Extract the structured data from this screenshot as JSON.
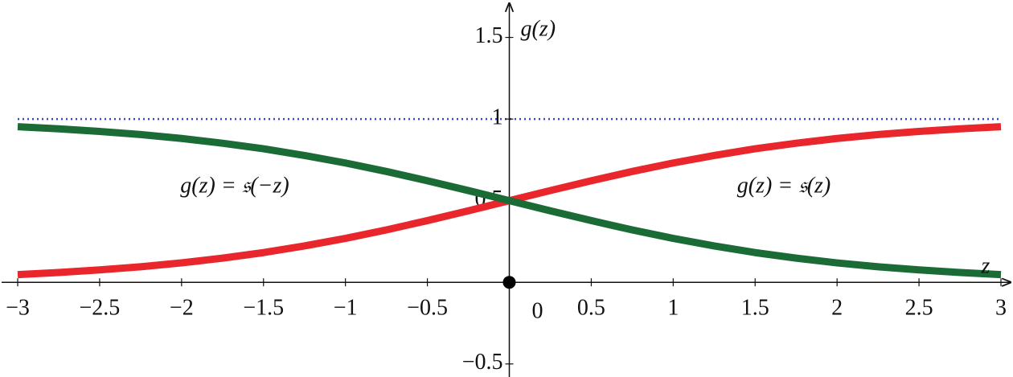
{
  "chart_data": {
    "type": "line",
    "x_label": "z",
    "y_label": "g(z)",
    "x": [
      -3,
      -2.75,
      -2.5,
      -2.25,
      -2,
      -1.75,
      -1.5,
      -1.25,
      -1,
      -0.75,
      -0.5,
      -0.25,
      0,
      0.25,
      0.5,
      0.75,
      1,
      1.25,
      1.5,
      1.75,
      2,
      2.25,
      2.5,
      2.75,
      3
    ],
    "series": [
      {
        "name": "g(z) = 𝔰(z)",
        "color": "#e8262b",
        "values": [
          0.047,
          0.06,
          0.076,
          0.095,
          0.119,
          0.148,
          0.182,
          0.223,
          0.269,
          0.321,
          0.378,
          0.438,
          0.5,
          0.562,
          0.622,
          0.679,
          0.731,
          0.777,
          0.818,
          0.852,
          0.881,
          0.905,
          0.924,
          0.94,
          0.953
        ]
      },
      {
        "name": "g(z) = 𝔰(−z)",
        "color": "#1a6b35",
        "values": [
          0.953,
          0.94,
          0.924,
          0.905,
          0.881,
          0.852,
          0.818,
          0.777,
          0.731,
          0.679,
          0.622,
          0.562,
          0.5,
          0.438,
          0.378,
          0.321,
          0.269,
          0.223,
          0.182,
          0.148,
          0.119,
          0.095,
          0.076,
          0.06,
          0.047
        ]
      }
    ],
    "xlim": [
      -3,
      3
    ],
    "ylim": [
      -0.58,
      1.68
    ],
    "xticks": [
      {
        "value": -3,
        "label": "−3"
      },
      {
        "value": -2.5,
        "label": "−2.5"
      },
      {
        "value": -2,
        "label": "−2"
      },
      {
        "value": -1.5,
        "label": "−1.5"
      },
      {
        "value": -1,
        "label": "−1"
      },
      {
        "value": -0.5,
        "label": "−0.5"
      },
      0.5,
      1,
      1.5,
      2,
      2.5,
      3
    ],
    "yticks": [
      {
        "value": -0.5,
        "label": "−0.5"
      },
      0.5,
      1,
      1.5
    ],
    "origin_label": "0",
    "origin_point": {
      "x": 0,
      "y": 0
    },
    "reference_line": {
      "value": 1,
      "color": "#3a44c0"
    }
  }
}
